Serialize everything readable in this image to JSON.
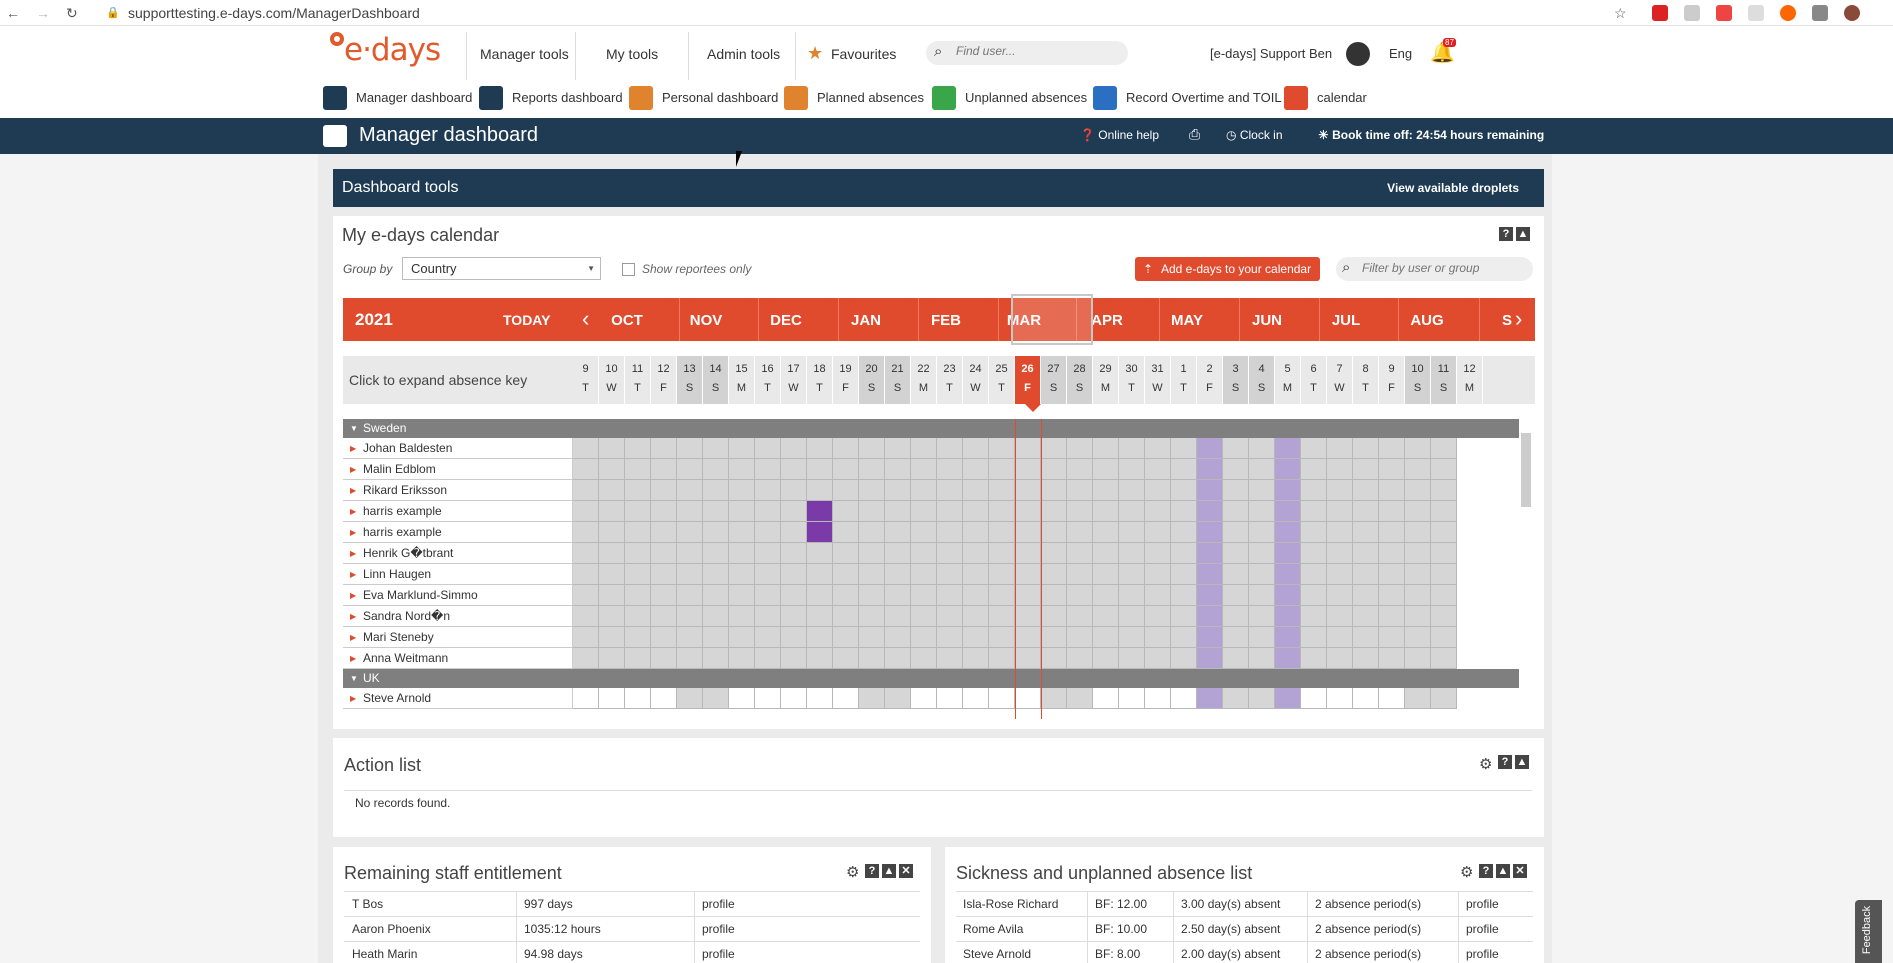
{
  "browser": {
    "url": "supporttesting.e-days.com/ManagerDashboard"
  },
  "brand": {
    "logo": "e·days",
    "accent": "#e04b2e",
    "navy": "#1e3b53"
  },
  "topnav": {
    "manager_tools": "Manager tools",
    "my_tools": "My tools",
    "admin_tools": "Admin tools",
    "favourites": "Favourites",
    "find_user_placeholder": "Find user...",
    "user_name": "[e-days] Support Ben",
    "language": "Eng",
    "notifications": "87"
  },
  "shortcuts": [
    {
      "label": "Manager dashboard",
      "color": "#1e3b53",
      "icon": "list-icon"
    },
    {
      "label": "Reports dashboard",
      "color": "#1e3b53",
      "icon": "chart-icon"
    },
    {
      "label": "Personal dashboard",
      "color": "#e0832e",
      "icon": "person-icon"
    },
    {
      "label": "Planned absences",
      "color": "#e0832e",
      "icon": "sun-icon"
    },
    {
      "label": "Unplanned absences",
      "color": "#3aa64a",
      "icon": "plus-icon"
    },
    {
      "label": "Record Overtime and TOIL",
      "color": "#2a6fc2",
      "icon": "clock-icon"
    },
    {
      "label": "calendar",
      "color": "#e04b2e",
      "icon": "calendar-icon"
    }
  ],
  "titlebar": {
    "title": "Manager dashboard",
    "online_help": "Online help",
    "clock_in": "Clock in",
    "book_time_off": "Book time off:",
    "hours_remaining": "24:54 hours remaining"
  },
  "dashboard_tools": {
    "title": "Dashboard tools",
    "view_droplets": "View available droplets"
  },
  "calendar": {
    "title": "My e-days calendar",
    "group_by_label": "Group by",
    "group_by_value": "Country",
    "show_reportees": "Show reportees only",
    "add_button": "Add e-days to your calendar",
    "filter_placeholder": "Filter by user or group",
    "year": "2021",
    "today": "TODAY",
    "months": [
      "OCT",
      "NOV",
      "DEC",
      "JAN",
      "FEB",
      "MAR",
      "APR",
      "MAY",
      "JUN",
      "JUL",
      "AUG",
      "S"
    ],
    "absence_key": "Click to expand absence key",
    "days": [
      {
        "n": "9",
        "d": "T"
      },
      {
        "n": "10",
        "d": "W"
      },
      {
        "n": "11",
        "d": "T"
      },
      {
        "n": "12",
        "d": "F"
      },
      {
        "n": "13",
        "d": "S"
      },
      {
        "n": "14",
        "d": "S"
      },
      {
        "n": "15",
        "d": "M"
      },
      {
        "n": "16",
        "d": "T"
      },
      {
        "n": "17",
        "d": "W"
      },
      {
        "n": "18",
        "d": "T"
      },
      {
        "n": "19",
        "d": "F"
      },
      {
        "n": "20",
        "d": "S"
      },
      {
        "n": "21",
        "d": "S"
      },
      {
        "n": "22",
        "d": "M"
      },
      {
        "n": "23",
        "d": "T"
      },
      {
        "n": "24",
        "d": "W"
      },
      {
        "n": "25",
        "d": "T"
      },
      {
        "n": "26",
        "d": "F"
      },
      {
        "n": "27",
        "d": "S"
      },
      {
        "n": "28",
        "d": "S"
      },
      {
        "n": "29",
        "d": "M"
      },
      {
        "n": "30",
        "d": "T"
      },
      {
        "n": "31",
        "d": "W"
      },
      {
        "n": "1",
        "d": "T"
      },
      {
        "n": "2",
        "d": "F"
      },
      {
        "n": "3",
        "d": "S"
      },
      {
        "n": "4",
        "d": "S"
      },
      {
        "n": "5",
        "d": "M"
      },
      {
        "n": "6",
        "d": "T"
      },
      {
        "n": "7",
        "d": "W"
      },
      {
        "n": "8",
        "d": "T"
      },
      {
        "n": "9",
        "d": "F"
      },
      {
        "n": "10",
        "d": "S"
      },
      {
        "n": "11",
        "d": "S"
      },
      {
        "n": "12",
        "d": "M"
      }
    ],
    "groups": [
      {
        "name": "Sweden",
        "people": [
          "Johan Baldesten",
          "Malin Edblom",
          "Rikard Eriksson",
          "harris example",
          "harris example",
          "Henrik G�tbrant",
          "Linn Haugen",
          "Eva Marklund-Simmo",
          "Sandra Nord�n",
          "Mari Steneby",
          "Anna Weitmann"
        ]
      },
      {
        "name": "UK",
        "people": [
          "Steve Arnold"
        ]
      }
    ]
  },
  "action_list": {
    "title": "Action list",
    "empty": "No records found."
  },
  "entitlement": {
    "title": "Remaining staff entitlement",
    "rows": [
      [
        "T Bos",
        "997 days",
        "profile"
      ],
      [
        "Aaron Phoenix",
        "1035:12 hours",
        "profile"
      ],
      [
        "Heath Marin",
        "94.98 days",
        "profile"
      ]
    ]
  },
  "sickness": {
    "title": "Sickness and unplanned absence list",
    "rows": [
      [
        "Isla-Rose Richard",
        "BF: 12.00",
        "3.00 day(s) absent",
        "2 absence period(s)",
        "profile"
      ],
      [
        "Rome Avila",
        "BF: 10.00",
        "2.50 day(s) absent",
        "2 absence period(s)",
        "profile"
      ],
      [
        "Steve Arnold",
        "BF: 8.00",
        "2.00 day(s) absent",
        "2 absence period(s)",
        "profile"
      ]
    ]
  },
  "feedback": "Feedback"
}
